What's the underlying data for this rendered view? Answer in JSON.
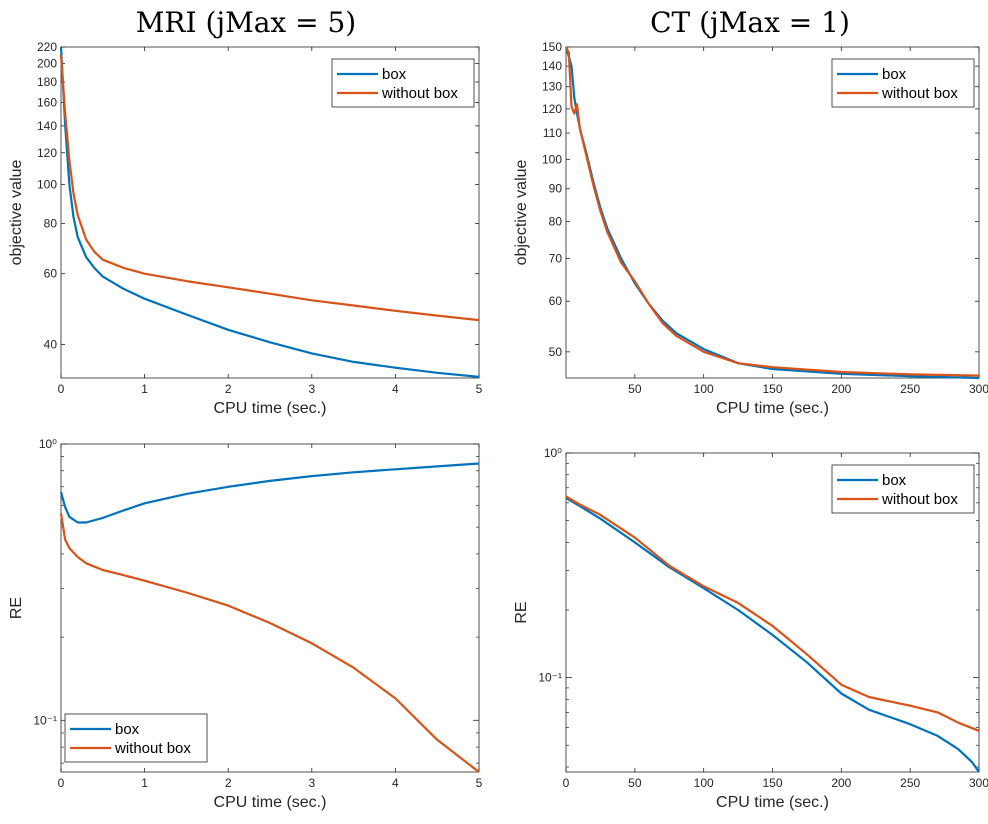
{
  "figure_titles": [
    "MRI (jMax = 5)",
    "CT (jMax = 1)"
  ],
  "colors": {
    "box": "#0072BD",
    "without_box": "#D95319"
  },
  "chart_data": [
    {
      "type": "line",
      "panel": "top-left",
      "xlabel": "CPU time (sec.)",
      "ylabel": "objective value",
      "xlim": [
        0,
        5
      ],
      "ylim": [
        33,
        220
      ],
      "yscale": "log",
      "xticks": [
        0,
        1,
        2,
        3,
        4,
        5
      ],
      "yticks": [
        40,
        60,
        80,
        100,
        120,
        140,
        160,
        180,
        200,
        220
      ],
      "legend_position": "top-right",
      "series": [
        {
          "name": "box",
          "x": [
            0,
            0.05,
            0.1,
            0.15,
            0.2,
            0.3,
            0.4,
            0.5,
            0.75,
            1,
            1.5,
            2,
            2.5,
            3,
            3.5,
            4,
            4.5,
            5
          ],
          "y": [
            220,
            140,
            100,
            83,
            74,
            66,
            62,
            59,
            55,
            52,
            47.5,
            43.5,
            40.5,
            38,
            36.2,
            35,
            34,
            33.2
          ]
        },
        {
          "name": "without box",
          "x": [
            0,
            0.05,
            0.1,
            0.15,
            0.2,
            0.3,
            0.4,
            0.5,
            0.75,
            1,
            1.5,
            2,
            2.5,
            3,
            3.5,
            4,
            4.5,
            5
          ],
          "y": [
            210,
            150,
            115,
            95,
            84,
            73,
            68,
            65,
            62,
            60,
            57.5,
            55.5,
            53.5,
            51.5,
            50,
            48.5,
            47.2,
            46
          ]
        }
      ]
    },
    {
      "type": "line",
      "panel": "top-right",
      "xlabel": "CPU time (sec.)",
      "ylabel": "objective value",
      "xlim": [
        0,
        300
      ],
      "ylim": [
        45.5,
        150
      ],
      "yscale": "log",
      "xticks": [
        50,
        100,
        150,
        200,
        250,
        300
      ],
      "yticks": [
        50,
        60,
        70,
        80,
        90,
        100,
        110,
        120,
        130,
        140,
        150
      ],
      "legend_position": "top-right",
      "series": [
        {
          "name": "box",
          "x": [
            0,
            2,
            4,
            6,
            8,
            10,
            15,
            20,
            25,
            30,
            40,
            50,
            60,
            70,
            80,
            100,
            125,
            150,
            200,
            250,
            300
          ],
          "y": [
            150,
            145,
            140,
            125,
            118,
            112,
            102,
            92,
            84,
            78,
            70,
            64,
            59.5,
            56,
            53.5,
            50.5,
            48,
            47,
            46.2,
            45.8,
            45.5
          ]
        },
        {
          "name": "without box",
          "x": [
            0,
            2,
            4,
            6,
            8,
            10,
            15,
            20,
            25,
            30,
            40,
            50,
            60,
            70,
            80,
            100,
            125,
            150,
            200,
            250,
            300
          ],
          "y": [
            150,
            147,
            121,
            118,
            122,
            112,
            101,
            91,
            83,
            77,
            69,
            64.5,
            59.5,
            55.5,
            53,
            50,
            48,
            47.3,
            46.5,
            46.1,
            45.9
          ]
        }
      ]
    },
    {
      "type": "line",
      "panel": "bottom-left",
      "xlabel": "CPU time (sec.)",
      "ylabel": "RE",
      "xlim": [
        0,
        5
      ],
      "ylim": [
        0.065,
        1
      ],
      "yscale": "log",
      "xticks": [
        0,
        1,
        2,
        3,
        4,
        5
      ],
      "yticks_labels": [
        "10⁻¹",
        "10⁰"
      ],
      "legend_position": "bottom-left",
      "series": [
        {
          "name": "box",
          "x": [
            0,
            0.05,
            0.1,
            0.2,
            0.3,
            0.5,
            0.75,
            1,
            1.5,
            2,
            2.5,
            3,
            3.5,
            4,
            4.5,
            5
          ],
          "y": [
            0.67,
            0.59,
            0.545,
            0.52,
            0.52,
            0.54,
            0.575,
            0.61,
            0.66,
            0.7,
            0.735,
            0.765,
            0.79,
            0.81,
            0.83,
            0.85
          ]
        },
        {
          "name": "without box",
          "x": [
            0,
            0.05,
            0.1,
            0.2,
            0.3,
            0.5,
            0.75,
            1,
            1.5,
            2,
            2.5,
            3,
            3.5,
            4,
            4.5,
            5
          ],
          "y": [
            0.56,
            0.45,
            0.42,
            0.39,
            0.37,
            0.35,
            0.335,
            0.32,
            0.29,
            0.26,
            0.225,
            0.19,
            0.155,
            0.12,
            0.085,
            0.064
          ]
        }
      ]
    },
    {
      "type": "line",
      "panel": "bottom-right",
      "xlabel": "CPU time (sec.)",
      "ylabel": "RE",
      "xlim": [
        0,
        300
      ],
      "ylim": [
        0.038,
        1
      ],
      "yscale": "log",
      "xticks": [
        0,
        50,
        100,
        150,
        200,
        250,
        300
      ],
      "yticks_labels": [
        "10⁻¹",
        "10⁰"
      ],
      "legend_position": "top-right",
      "series": [
        {
          "name": "box",
          "x": [
            0,
            10,
            25,
            50,
            75,
            100,
            125,
            150,
            175,
            200,
            220,
            250,
            270,
            285,
            295,
            300
          ],
          "y": [
            0.63,
            0.58,
            0.51,
            0.4,
            0.31,
            0.25,
            0.2,
            0.155,
            0.117,
            0.085,
            0.072,
            0.062,
            0.055,
            0.048,
            0.042,
            0.038
          ]
        },
        {
          "name": "without box",
          "x": [
            0,
            10,
            25,
            50,
            75,
            100,
            125,
            150,
            175,
            200,
            220,
            250,
            270,
            285,
            300
          ],
          "y": [
            0.64,
            0.59,
            0.53,
            0.42,
            0.315,
            0.255,
            0.215,
            0.17,
            0.127,
            0.093,
            0.082,
            0.075,
            0.07,
            0.063,
            0.058
          ]
        }
      ]
    }
  ]
}
